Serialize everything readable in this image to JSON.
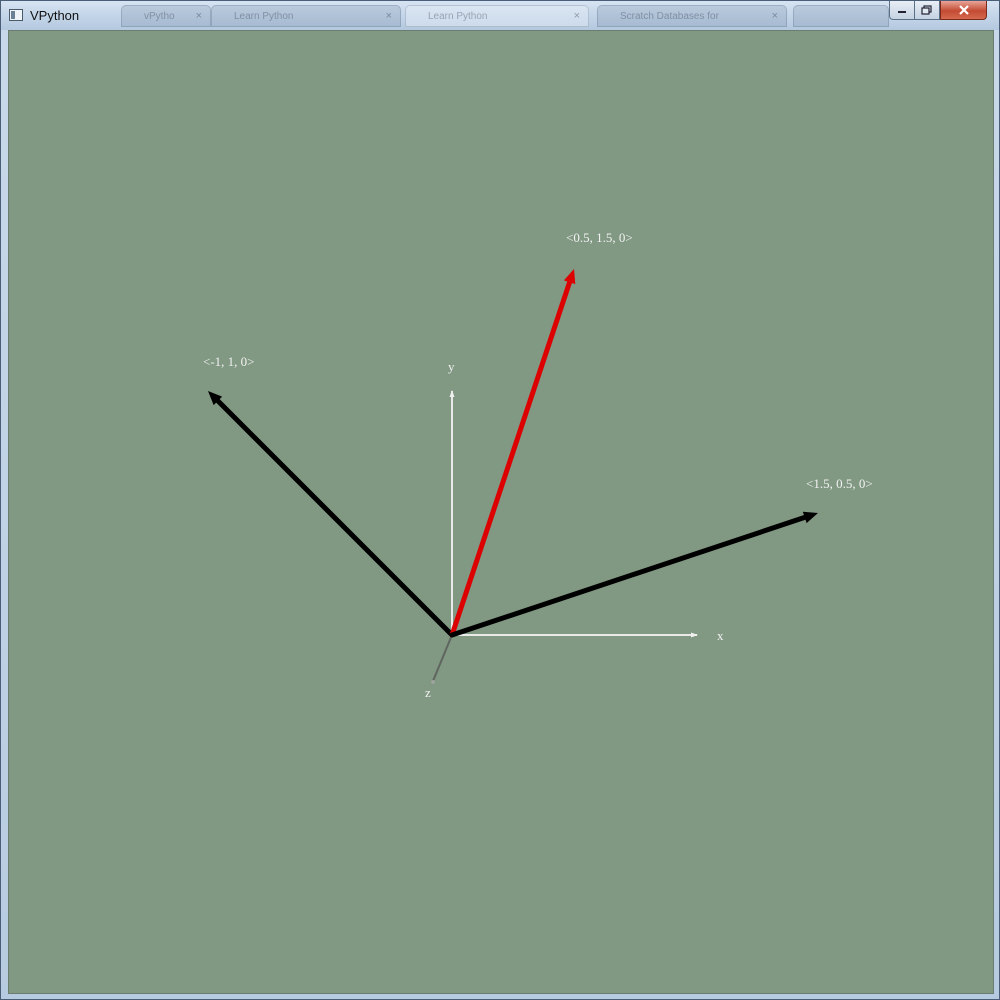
{
  "window": {
    "title": "VPython",
    "colors": {
      "canvas_background": "#819883",
      "highlight_arrow": "#dd0000",
      "arrow": "#000000",
      "axis": "#f0f0f0"
    }
  },
  "background_tabs": [
    {
      "label": "vPytho",
      "icon": "page-icon"
    },
    {
      "label": "Learn Python",
      "icon": "page-icon"
    },
    {
      "label": "Learn Python",
      "icon": "page-icon"
    },
    {
      "label": "Scratch Databases for",
      "icon": "page-icon"
    },
    {
      "label": "",
      "icon": "app-icon"
    }
  ],
  "caption_buttons": {
    "minimize_icon": "minimize-icon",
    "maximize_icon": "maximize-icon",
    "close_icon": "close-icon"
  },
  "scene": {
    "axes": {
      "x_label": "x",
      "y_label": "y",
      "z_label": "z"
    },
    "vectors": [
      {
        "label": "<-1, 1, 0>",
        "components": [
          -1,
          1,
          0
        ],
        "color": "#000000"
      },
      {
        "label": "<0.5, 1.5, 0>",
        "components": [
          0.5,
          1.5,
          0
        ],
        "color": "#dd0000"
      },
      {
        "label": "<1.5, 0.5, 0>",
        "components": [
          1.5,
          0.5,
          0
        ],
        "color": "#000000"
      }
    ]
  }
}
